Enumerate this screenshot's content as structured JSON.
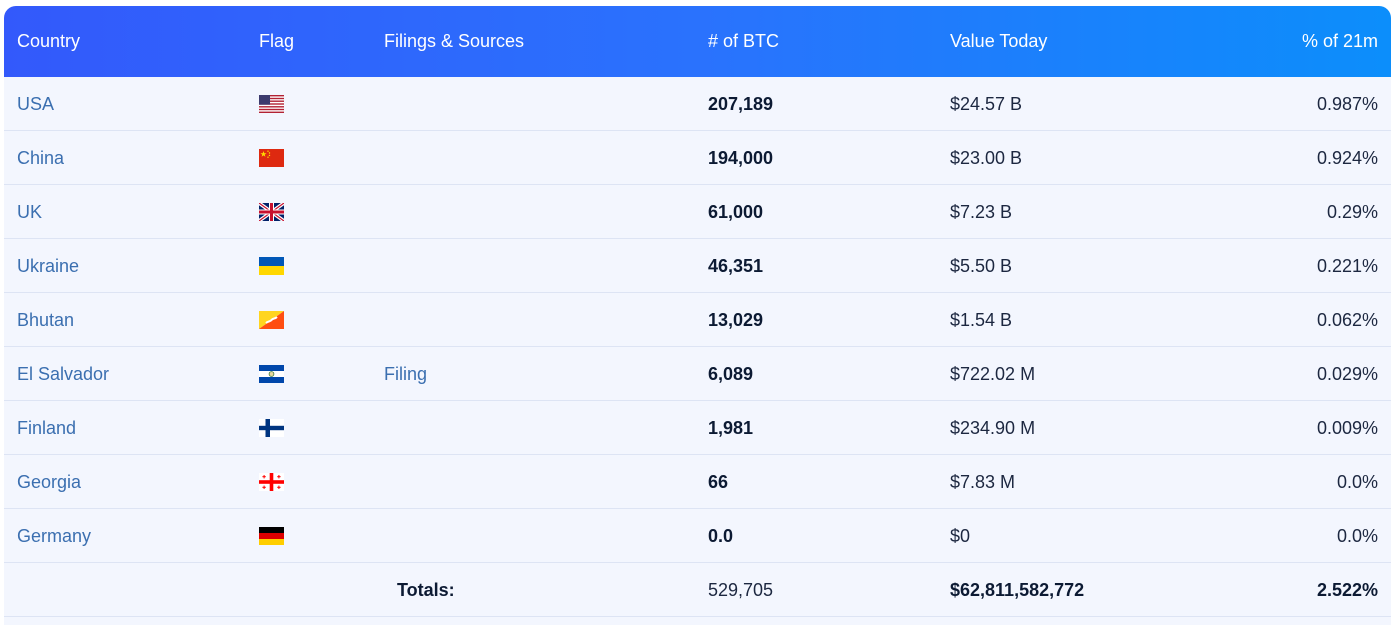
{
  "header": {
    "country": "Country",
    "flag": "Flag",
    "filings": "Filings & Sources",
    "btc": "# of BTC",
    "value": "Value Today",
    "pct": "% of 21m"
  },
  "rows": [
    {
      "country": "USA",
      "flag_icon": "usa-flag-icon",
      "filing": "",
      "btc": "207,189",
      "value": "$24.57 B",
      "pct": "0.987%"
    },
    {
      "country": "China",
      "flag_icon": "china-flag-icon",
      "filing": "",
      "btc": "194,000",
      "value": "$23.00 B",
      "pct": "0.924%"
    },
    {
      "country": "UK",
      "flag_icon": "uk-flag-icon",
      "filing": "",
      "btc": "61,000",
      "value": "$7.23 B",
      "pct": "0.29%"
    },
    {
      "country": "Ukraine",
      "flag_icon": "ukraine-flag-icon",
      "filing": "",
      "btc": "46,351",
      "value": "$5.50 B",
      "pct": "0.221%"
    },
    {
      "country": "Bhutan",
      "flag_icon": "bhutan-flag-icon",
      "filing": "",
      "btc": "13,029",
      "value": "$1.54 B",
      "pct": "0.062%"
    },
    {
      "country": "El Salvador",
      "flag_icon": "el-salvador-flag-icon",
      "filing": "Filing",
      "btc": "6,089",
      "value": "$722.02 M",
      "pct": "0.029%"
    },
    {
      "country": "Finland",
      "flag_icon": "finland-flag-icon",
      "filing": "",
      "btc": "1,981",
      "value": "$234.90 M",
      "pct": "0.009%"
    },
    {
      "country": "Georgia",
      "flag_icon": "georgia-flag-icon",
      "filing": "",
      "btc": "66",
      "value": "$7.83 M",
      "pct": "0.0%"
    },
    {
      "country": "Germany",
      "flag_icon": "germany-flag-icon",
      "filing": "",
      "btc": "0.0",
      "value": "$0",
      "pct": "0.0%"
    }
  ],
  "totals": {
    "label": "Totals:",
    "btc": "529,705",
    "value": "$62,811,582,772",
    "pct": "2.522%"
  },
  "colors": {
    "header_gradient_start": "#3359fb",
    "header_gradient_end": "#0c8efb",
    "link": "#3b6fb0",
    "row_bg": "#f3f6fe",
    "row_border": "#dde4f4"
  }
}
